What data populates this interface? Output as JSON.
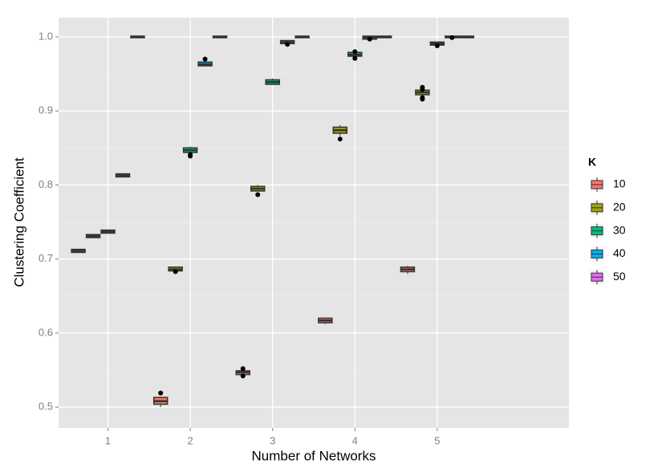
{
  "chart_data": {
    "type": "boxplot",
    "x_label": "Number of Networks",
    "y_label": "Clustering Coefficient",
    "categories": [
      "1",
      "2",
      "3",
      "4",
      "5"
    ],
    "ylim": [
      0.472,
      1.026
    ],
    "yticks": [
      0.5,
      0.6,
      0.7,
      0.8,
      0.9,
      {
        "value": 1.0,
        "label": "1.0"
      }
    ],
    "grid": true,
    "legend_title": "K",
    "legend_position": "right",
    "series": [
      {
        "name": "10",
        "color": "#F8766D",
        "boxes": [
          {
            "low": 0.71,
            "q1": 0.71,
            "median": 0.711,
            "q3": 0.712,
            "high": 0.712,
            "outliers": []
          },
          {
            "low": 0.5,
            "q1": 0.505,
            "median": 0.508,
            "q3": 0.512,
            "high": 0.512,
            "outliers": [
              0.519
            ]
          },
          {
            "low": 0.545,
            "q1": 0.545,
            "median": 0.547,
            "q3": 0.548,
            "high": 0.548,
            "outliers": [
              0.552,
              0.542
            ]
          },
          {
            "low": 0.612,
            "q1": 0.615,
            "median": 0.617,
            "q3": 0.619,
            "high": 0.621,
            "outliers": []
          },
          {
            "low": 0.68,
            "q1": 0.684,
            "median": 0.686,
            "q3": 0.688,
            "high": 0.691,
            "outliers": []
          }
        ]
      },
      {
        "name": "20",
        "color": "#A3A500",
        "boxes": [
          {
            "low": 0.73,
            "q1": 0.73,
            "median": 0.731,
            "q3": 0.732,
            "high": 0.732,
            "outliers": []
          },
          {
            "low": 0.685,
            "q1": 0.685,
            "median": 0.686,
            "q3": 0.688,
            "high": 0.688,
            "outliers": [
              0.683
            ]
          },
          {
            "low": 0.791,
            "q1": 0.793,
            "median": 0.795,
            "q3": 0.797,
            "high": 0.8,
            "outliers": [
              0.787
            ]
          },
          {
            "low": 0.866,
            "q1": 0.871,
            "median": 0.874,
            "q3": 0.877,
            "high": 0.881,
            "outliers": [
              0.862
            ]
          },
          {
            "low": 0.923,
            "q1": 0.923,
            "median": 0.925,
            "q3": 0.927,
            "high": 0.927,
            "outliers": [
              0.932,
              0.929,
              0.916,
              0.918
            ]
          }
        ]
      },
      {
        "name": "30",
        "color": "#00BF7D",
        "boxes": [
          {
            "low": 0.736,
            "q1": 0.736,
            "median": 0.737,
            "q3": 0.738,
            "high": 0.738,
            "outliers": []
          },
          {
            "low": 0.843,
            "q1": 0.845,
            "median": 0.847,
            "q3": 0.849,
            "high": 0.852,
            "outliers": [
              0.839,
              0.841
            ]
          },
          {
            "low": 0.936,
            "q1": 0.937,
            "median": 0.939,
            "q3": 0.941,
            "high": 0.944,
            "outliers": []
          },
          {
            "low": 0.975,
            "q1": 0.975,
            "median": 0.976,
            "q3": 0.978,
            "high": 0.978,
            "outliers": [
              0.98,
              0.971
            ]
          },
          {
            "low": 0.99,
            "q1": 0.99,
            "median": 0.991,
            "q3": 0.992,
            "high": 0.992,
            "outliers": [
              0.988
            ]
          }
        ]
      },
      {
        "name": "40",
        "color": "#00B0F6",
        "boxes": [
          {
            "low": 0.812,
            "q1": 0.812,
            "median": 0.813,
            "q3": 0.814,
            "high": 0.814,
            "outliers": []
          },
          {
            "low": 0.962,
            "q1": 0.962,
            "median": 0.963,
            "q3": 0.965,
            "high": 0.965,
            "outliers": [
              0.97
            ]
          },
          {
            "low": 0.992,
            "q1": 0.992,
            "median": 0.993,
            "q3": 0.994,
            "high": 0.994,
            "outliers": [
              0.99
            ]
          },
          {
            "low": 0.998,
            "q1": 0.998,
            "median": 0.999,
            "q3": 1.0,
            "high": 1.0,
            "outliers": [
              0.997
            ]
          },
          {
            "low": 1.0,
            "q1": 1.0,
            "median": 1.0,
            "q3": 1.0,
            "high": 1.0,
            "outliers": [
              0.999
            ]
          }
        ]
      },
      {
        "name": "50",
        "color": "#E76BF3",
        "boxes": [
          {
            "low": 1.0,
            "q1": 1.0,
            "median": 1.0,
            "q3": 1.0,
            "high": 1.0,
            "outliers": []
          },
          {
            "low": 1.0,
            "q1": 1.0,
            "median": 1.0,
            "q3": 1.0,
            "high": 1.0,
            "outliers": []
          },
          {
            "low": 1.0,
            "q1": 1.0,
            "median": 1.0,
            "q3": 1.0,
            "high": 1.0,
            "outliers": []
          },
          {
            "low": 1.0,
            "q1": 1.0,
            "median": 1.0,
            "q3": 1.0,
            "high": 1.0,
            "outliers": []
          },
          {
            "low": 1.0,
            "q1": 1.0,
            "median": 1.0,
            "q3": 1.0,
            "high": 1.0,
            "outliers": []
          }
        ]
      }
    ]
  }
}
